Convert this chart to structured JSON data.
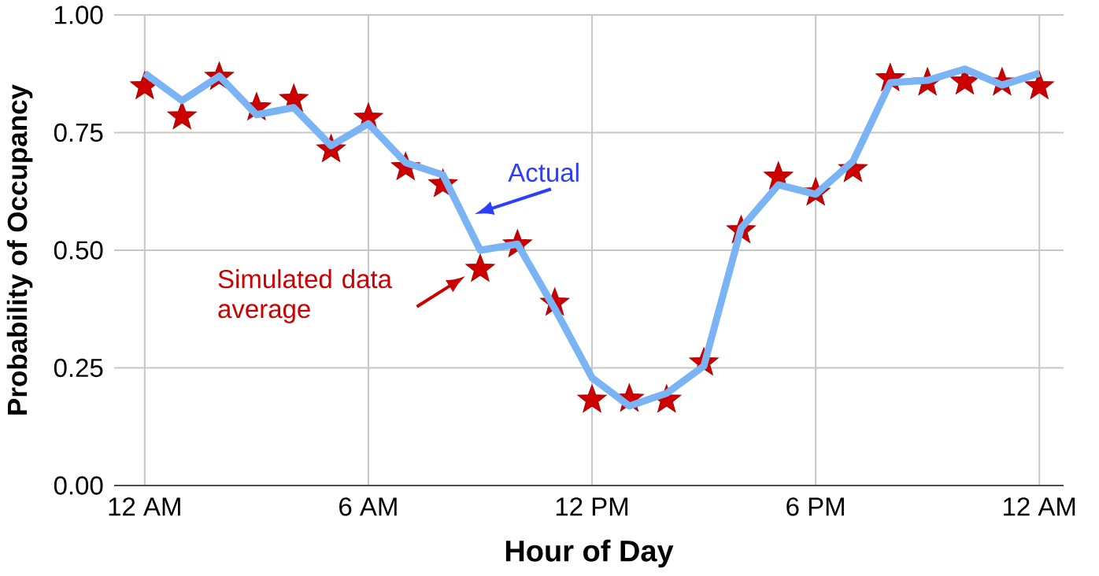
{
  "chart_data": {
    "type": "line",
    "xlabel": "Hour of Day",
    "ylabel": "Probability of Occupancy",
    "categories": [
      "12 AM",
      null,
      null,
      null,
      null,
      null,
      "6 AM",
      null,
      null,
      null,
      null,
      null,
      "12 PM",
      null,
      null,
      null,
      null,
      null,
      "6 PM",
      null,
      null,
      null,
      null,
      null,
      "12 AM"
    ],
    "series": [
      {
        "name": "Actual",
        "color": "#7ab4f5",
        "marker": "none",
        "line_style": "solid",
        "values": [
          0.876,
          0.818,
          0.87,
          0.788,
          0.803,
          0.722,
          0.769,
          0.686,
          0.66,
          0.5,
          0.513,
          0.376,
          0.229,
          0.169,
          0.196,
          0.254,
          0.547,
          0.639,
          0.619,
          0.689,
          0.856,
          0.861,
          0.885,
          0.851,
          0.876
        ]
      },
      {
        "name": "Simulated data average",
        "type": "scatter",
        "color": "#cc0000",
        "marker": "star",
        "values": [
          0.848,
          0.784,
          0.868,
          0.803,
          0.821,
          0.714,
          0.781,
          0.676,
          0.64,
          0.46,
          0.512,
          0.388,
          0.182,
          0.184,
          0.182,
          0.261,
          0.542,
          0.656,
          0.622,
          0.672,
          0.865,
          0.856,
          0.858,
          0.856,
          0.848
        ]
      }
    ],
    "ylim": [
      0,
      1
    ],
    "yticks": [
      {
        "value": 0,
        "label": "0.00"
      },
      {
        "value": 0.25,
        "label": "0.25"
      },
      {
        "value": 0.5,
        "label": "0.50"
      },
      {
        "value": 0.75,
        "label": "0.75"
      },
      {
        "value": 1,
        "label": "1.00"
      }
    ],
    "grid": true
  }
}
